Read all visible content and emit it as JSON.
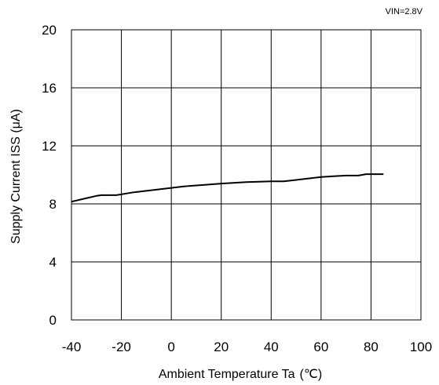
{
  "chart_data": {
    "type": "line",
    "annotation": "VIN=2.8V",
    "xlabel": "Ambient Temperature Ta",
    "xlabel_unit": "(℃)",
    "ylabel": "Supply Current ISS (μA)",
    "xlim": [
      -40,
      100
    ],
    "ylim": [
      0,
      20
    ],
    "xticks": [
      "-40",
      "-20",
      "0",
      "20",
      "40",
      "60",
      "80",
      "100"
    ],
    "yticks": [
      "0",
      "4",
      "8",
      "12",
      "16",
      "20"
    ],
    "grid": true,
    "series": [
      {
        "x": [
          -40,
          -35,
          -30,
          -28,
          -22,
          -15,
          -5,
          5,
          20,
          30,
          40,
          45,
          50,
          60,
          65,
          70,
          75,
          78,
          85
        ],
        "y": [
          8.15,
          8.35,
          8.55,
          8.6,
          8.6,
          8.8,
          9.0,
          9.2,
          9.4,
          9.5,
          9.55,
          9.55,
          9.65,
          9.85,
          9.9,
          9.95,
          9.95,
          10.05,
          10.05
        ]
      }
    ]
  }
}
